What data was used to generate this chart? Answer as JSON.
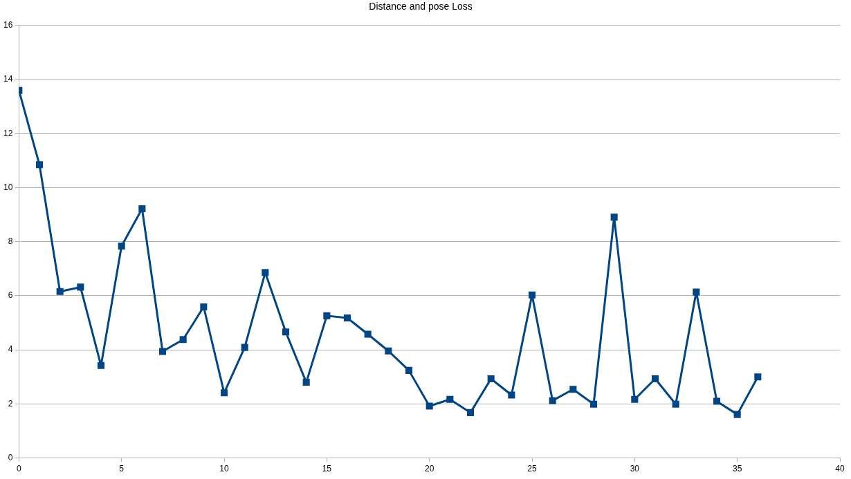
{
  "chart_data": {
    "type": "line",
    "title": "Distance and pose Loss",
    "x": [
      0,
      1,
      2,
      3,
      4,
      5,
      6,
      7,
      8,
      9,
      10,
      11,
      12,
      13,
      14,
      15,
      16,
      17,
      18,
      19,
      20,
      21,
      22,
      23,
      24,
      25,
      26,
      27,
      28,
      29,
      30,
      31,
      32,
      33,
      34,
      35,
      36
    ],
    "series": [
      {
        "color": "#004586",
        "values": [
          13.6,
          10.85,
          6.16,
          6.32,
          3.42,
          7.84,
          9.22,
          3.94,
          4.38,
          5.59,
          2.41,
          4.09,
          6.86,
          4.66,
          2.8,
          5.26,
          5.18,
          4.58,
          3.96,
          3.24,
          1.92,
          2.17,
          1.68,
          2.93,
          2.33,
          6.03,
          2.12,
          2.54,
          1.99,
          8.91,
          2.17,
          2.93,
          1.99,
          6.14,
          2.1,
          1.61,
          3.0
        ]
      }
    ],
    "xlim": [
      0,
      40
    ],
    "xticks": [
      0,
      5,
      10,
      15,
      20,
      25,
      30,
      35,
      40
    ],
    "ylim": [
      0,
      16
    ],
    "yticks": [
      0,
      2,
      4,
      6,
      8,
      10,
      12,
      14,
      16
    ],
    "grid": "y",
    "legend": false,
    "marker": "square",
    "line_style": "solid"
  }
}
